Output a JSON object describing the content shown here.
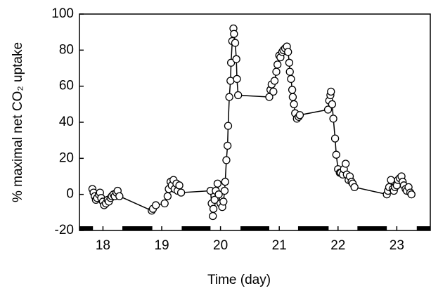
{
  "chart_data": {
    "type": "line",
    "xlabel": "Time (day)",
    "ylabel": "% maximal net CO₂ uptake",
    "xlim": [
      17.6,
      23.57
    ],
    "ylim": [
      -20,
      100
    ],
    "xticks": [
      18,
      19,
      20,
      21,
      22,
      23
    ],
    "yticks": [
      -20,
      0,
      20,
      40,
      60,
      80,
      100
    ],
    "dark_periods": [
      [
        17.6,
        17.83
      ],
      [
        18.33,
        18.84
      ],
      [
        19.34,
        19.83
      ],
      [
        20.34,
        20.83
      ],
      [
        21.32,
        21.84
      ],
      [
        22.33,
        22.83
      ],
      [
        23.34,
        23.57
      ]
    ],
    "series": [
      {
        "color": "#000000",
        "x": [
          17.82,
          17.84,
          17.86,
          17.88,
          17.9,
          17.93,
          17.95,
          17.97,
          18.0,
          18.02,
          18.05,
          18.08,
          18.1,
          18.13,
          18.15,
          18.18,
          18.2,
          18.23,
          18.25,
          18.28,
          18.83,
          18.85,
          18.9,
          19.05,
          19.1,
          19.12,
          19.15,
          19.17,
          19.2,
          19.22,
          19.25,
          19.27,
          19.3,
          19.33,
          19.83,
          19.85,
          19.87,
          19.88,
          19.9,
          19.92,
          19.95,
          19.97,
          20.0,
          20.03,
          20.05,
          20.07,
          20.08,
          20.1,
          20.12,
          20.13,
          20.15,
          20.17,
          20.18,
          20.2,
          20.22,
          20.23,
          20.25,
          20.27,
          20.28,
          20.3,
          20.83,
          20.85,
          20.87,
          20.9,
          20.92,
          20.95,
          20.97,
          21.0,
          21.02,
          21.05,
          21.07,
          21.1,
          21.13,
          21.15,
          21.17,
          21.18,
          21.2,
          21.22,
          21.23,
          21.25,
          21.27,
          21.3,
          21.33,
          21.35,
          21.83,
          21.85,
          21.87,
          21.88,
          21.9,
          21.92,
          21.95,
          21.97,
          22.0,
          22.03,
          22.05,
          22.08,
          22.1,
          22.13,
          22.15,
          22.18,
          22.2,
          22.23,
          22.25,
          22.28,
          22.83,
          22.85,
          22.87,
          22.9,
          22.93,
          22.95,
          22.97,
          23.0,
          23.02,
          23.05,
          23.08,
          23.1,
          23.12,
          23.15,
          23.17,
          23.2,
          23.23,
          23.25
        ],
        "values": [
          3,
          1,
          -1,
          -3,
          -2,
          0,
          1,
          -2,
          -4,
          -6,
          -5,
          -3,
          -4,
          -2,
          -1,
          0,
          -1,
          1,
          2,
          -1,
          -9,
          -8,
          -6,
          -5,
          -1,
          3,
          7,
          5,
          8,
          3,
          6,
          2,
          5,
          1,
          2,
          -5,
          -12,
          -8,
          -3,
          2,
          6,
          0,
          -5,
          -7,
          -4,
          2,
          7,
          19,
          27,
          38,
          54,
          63,
          73,
          85,
          92,
          89,
          84,
          75,
          64,
          55,
          54,
          58,
          61,
          57,
          63,
          68,
          72,
          77,
          76,
          79,
          80,
          81,
          82,
          79,
          73,
          68,
          64,
          58,
          54,
          50,
          45,
          42,
          43,
          44,
          47,
          52,
          55,
          57,
          50,
          42,
          31,
          22,
          14,
          12,
          12,
          11,
          14,
          17,
          11,
          8,
          10,
          7,
          6,
          4,
          0,
          2,
          4,
          8,
          3,
          2,
          4,
          5,
          8,
          9,
          10,
          7,
          5,
          3,
          2,
          4,
          1,
          0
        ]
      }
    ]
  }
}
